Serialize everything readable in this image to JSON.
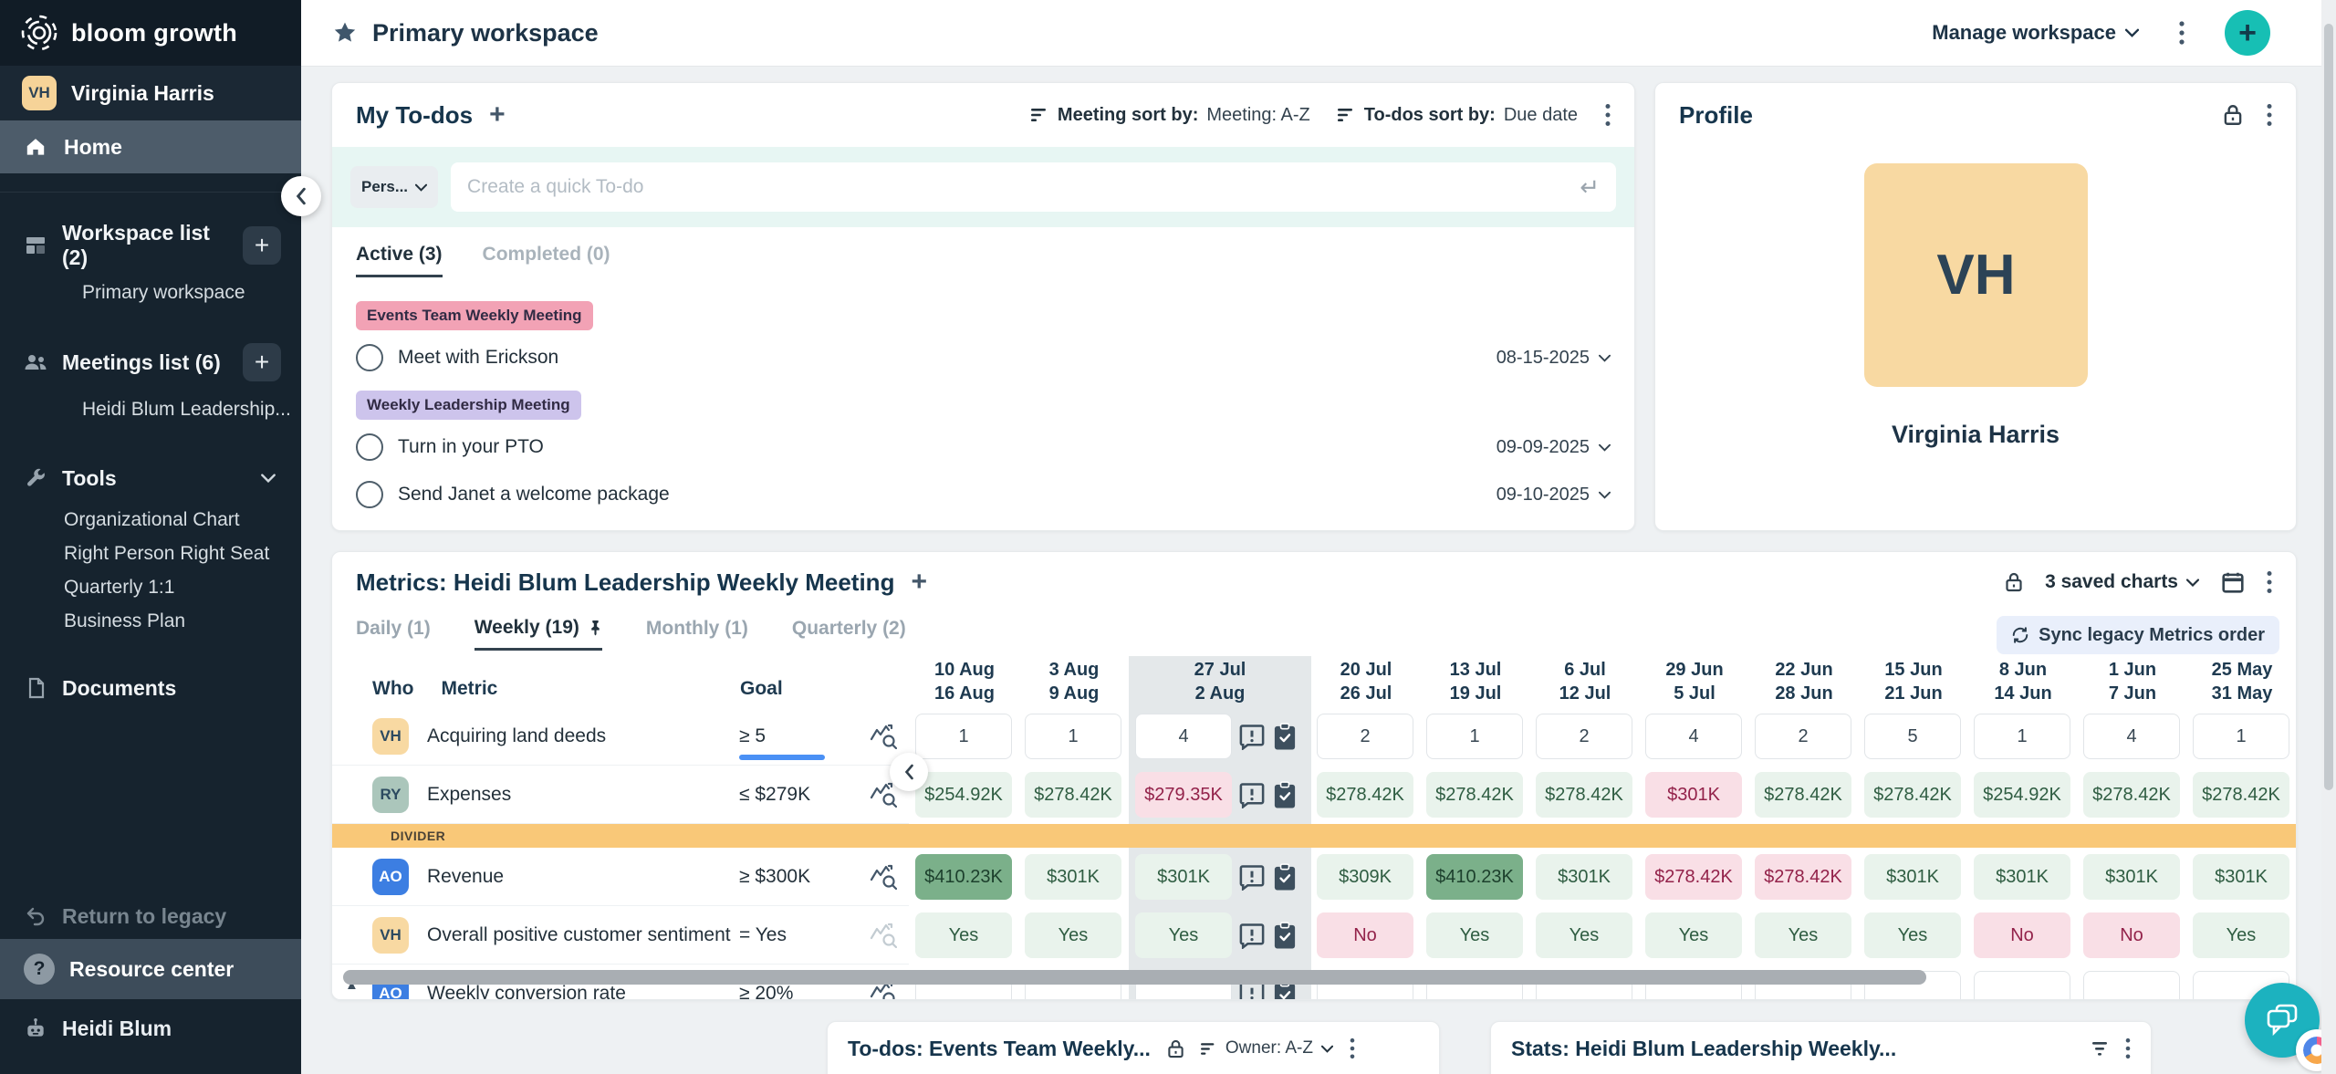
{
  "sidebar": {
    "logo_text": "bloom growth",
    "user": {
      "initials": "VH",
      "name": "Virginia Harris"
    },
    "home_label": "Home",
    "workspace": {
      "label": "Workspace list (2)",
      "items": [
        "Primary workspace"
      ]
    },
    "meetings": {
      "label": "Meetings list (6)",
      "items": [
        "Heidi Blum Leadership..."
      ]
    },
    "tools": {
      "label": "Tools",
      "items": [
        "Organizational Chart",
        "Right Person Right Seat",
        "Quarterly 1:1",
        "Business Plan"
      ]
    },
    "documents_label": "Documents",
    "return_legacy": "Return to legacy",
    "resource_center": "Resource center",
    "assistant": "Heidi Blum"
  },
  "header": {
    "title": "Primary workspace",
    "manage": "Manage workspace"
  },
  "icons": {
    "plus": "+",
    "enter": "↵",
    "collapse_left": "‹",
    "scroll_up": "▲",
    "help": "?"
  },
  "colors": {
    "accent_teal": "#17bfb4",
    "pink_badge": "#f2a2b5",
    "purple_badge": "#cdc4ec",
    "divider_orange": "#f9c878",
    "good_cell": "#e9f3ec",
    "best_cell": "#7bb08a",
    "bad_cell": "#f9dfe6"
  },
  "todos": {
    "title": "My To-dos",
    "meeting_sort_label": "Meeting sort by:",
    "meeting_sort_value": "Meeting: A-Z",
    "todo_sort_label": "To-dos sort by:",
    "todo_sort_value": "Due date",
    "owner_chip": "Pers...",
    "input_placeholder": "Create a quick To-do",
    "tab_active": "Active (3)",
    "tab_completed": "Completed (0)",
    "groups": [
      {
        "badge": "Events Team Weekly Meeting",
        "badge_bg": "#f2a2b5",
        "items": [
          {
            "title": "Meet with Erickson",
            "date": "08-15-2025"
          }
        ]
      },
      {
        "badge": "Weekly Leadership Meeting",
        "badge_bg": "#cdc4ec",
        "items": [
          {
            "title": "Turn in your PTO",
            "date": "09-09-2025"
          },
          {
            "title": "Send Janet a welcome package",
            "date": "09-10-2025"
          }
        ]
      }
    ]
  },
  "profile": {
    "title": "Profile",
    "initials": "VH",
    "name": "Virginia Harris",
    "avatar_bg": "#f8d9a2"
  },
  "metrics": {
    "title": "Metrics: Heidi Blum Leadership Weekly Meeting",
    "tabs": [
      {
        "label": "Daily (1)",
        "active": false,
        "pinned": false
      },
      {
        "label": "Weekly (19)",
        "active": true,
        "pinned": true
      },
      {
        "label": "Monthly (1)",
        "active": false,
        "pinned": false
      },
      {
        "label": "Quarterly (2)",
        "active": false,
        "pinned": false
      }
    ],
    "saved_charts": "3 saved charts",
    "sync_button": "Sync legacy Metrics order",
    "col_who": "Who",
    "col_metric": "Metric",
    "col_goal": "Goal",
    "weeks": [
      {
        "top": "10 Aug",
        "bottom": "16 Aug",
        "current": false
      },
      {
        "top": "3 Aug",
        "bottom": "9 Aug",
        "current": false
      },
      {
        "top": "27 Jul",
        "bottom": "2 Aug",
        "current": true
      },
      {
        "top": "20 Jul",
        "bottom": "26 Jul",
        "current": false
      },
      {
        "top": "13 Jul",
        "bottom": "19 Jul",
        "current": false
      },
      {
        "top": "6 Jul",
        "bottom": "12 Jul",
        "current": false
      },
      {
        "top": "29 Jun",
        "bottom": "5 Jul",
        "current": false
      },
      {
        "top": "22 Jun",
        "bottom": "28 Jun",
        "current": false
      },
      {
        "top": "15 Jun",
        "bottom": "21 Jun",
        "current": false
      },
      {
        "top": "8 Jun",
        "bottom": "14 Jun",
        "current": false
      },
      {
        "top": "1 Jun",
        "bottom": "7 Jun",
        "current": false
      },
      {
        "top": "25 May",
        "bottom": "31 May",
        "current": false
      }
    ],
    "rows": [
      {
        "type": "metric",
        "who": "VH",
        "who_bg": "#f8d9a2",
        "who_fg": "#2c4a60",
        "metric": "Acquiring land deeds",
        "goal": "≥ 5",
        "goal_underline": true,
        "spark_muted": false,
        "values": [
          "1",
          "1",
          "4",
          "2",
          "1",
          "2",
          "4",
          "2",
          "5",
          "1",
          "4",
          "1"
        ],
        "styles": [
          "plain",
          "plain",
          "plain",
          "plain",
          "plain",
          "plain",
          "plain",
          "plain",
          "plain",
          "plain",
          "plain",
          "plain"
        ]
      },
      {
        "type": "metric",
        "who": "RY",
        "who_bg": "#abc6bb",
        "who_fg": "#2c4a60",
        "metric": "Expenses",
        "goal": "≤ $279K",
        "goal_underline": false,
        "spark_muted": false,
        "values": [
          "$254.92K",
          "$278.42K",
          "$279.35K",
          "$278.42K",
          "$278.42K",
          "$278.42K",
          "$301K",
          "$278.42K",
          "$278.42K",
          "$254.92K",
          "$278.42K",
          "$278.42K"
        ],
        "styles": [
          "good",
          "good",
          "bad",
          "good",
          "good",
          "good",
          "bad",
          "good",
          "good",
          "good",
          "good",
          "good"
        ]
      },
      {
        "type": "divider",
        "label": "DIVIDER"
      },
      {
        "type": "metric",
        "who": "AO",
        "who_bg": "#3c7ee2",
        "who_fg": "#ffffff",
        "metric": "Revenue",
        "goal": "≥ $300K",
        "goal_underline": false,
        "spark_muted": false,
        "values": [
          "$410.23K",
          "$301K",
          "$301K",
          "$309K",
          "$410.23K",
          "$301K",
          "$278.42K",
          "$278.42K",
          "$301K",
          "$301K",
          "$301K",
          "$301K"
        ],
        "styles": [
          "best",
          "good",
          "good",
          "good",
          "best",
          "good",
          "bad",
          "bad",
          "good",
          "good",
          "good",
          "good"
        ]
      },
      {
        "type": "metric",
        "who": "VH",
        "who_bg": "#f8d9a2",
        "who_fg": "#2c4a60",
        "metric": "Overall positive customer sentiment",
        "goal": "= Yes",
        "goal_underline": false,
        "spark_muted": true,
        "values": [
          "Yes",
          "Yes",
          "Yes",
          "No",
          "Yes",
          "Yes",
          "Yes",
          "Yes",
          "Yes",
          "No",
          "No",
          "Yes"
        ],
        "styles": [
          "good",
          "good",
          "good",
          "bad",
          "good",
          "good",
          "good",
          "good",
          "good",
          "bad",
          "bad",
          "good"
        ]
      },
      {
        "type": "metric",
        "who": "AO",
        "who_bg": "#3c7ee2",
        "who_fg": "#ffffff",
        "metric": "Weekly conversion rate",
        "goal": "≥ 20%",
        "goal_underline": false,
        "spark_muted": false,
        "partial": true,
        "scroll_arrow": true,
        "values": [
          "",
          "",
          "",
          "",
          "",
          "",
          "",
          "",
          "",
          "",
          "",
          ""
        ],
        "styles": [
          "plain",
          "plain",
          "plain",
          "plain",
          "plain",
          "plain",
          "plain",
          "plain",
          "plain",
          "plain",
          "plain",
          "plain"
        ]
      }
    ]
  },
  "bottom": {
    "todos_title": "To-dos: Events Team Weekly...",
    "owner_sort": "Owner: A-Z",
    "stats_title": "Stats: Heidi Blum Leadership Weekly..."
  }
}
